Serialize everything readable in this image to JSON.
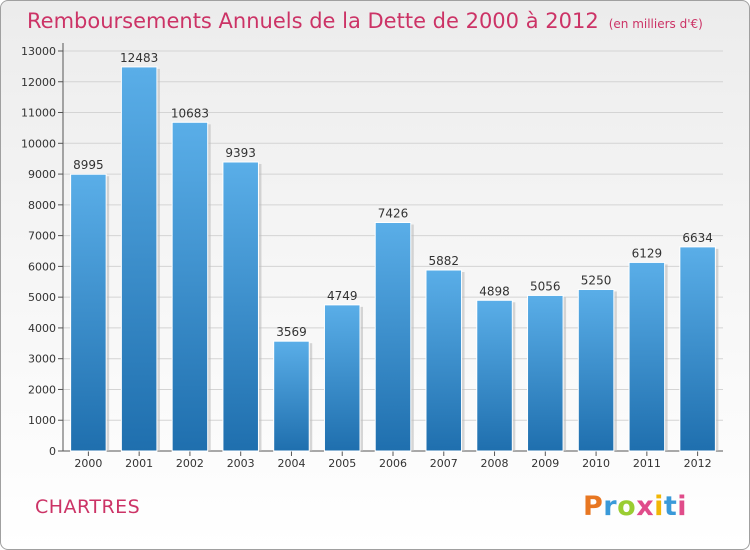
{
  "title": "Remboursements Annuels de la Dette de 2000 à 2012",
  "title_unit": "(en milliers d'€)",
  "commune": "CHARTRES",
  "logo": {
    "text": "Proxiti",
    "colors": [
      "#e87722",
      "#3a9ad9",
      "#9acd32",
      "#e04c8a",
      "#f2b705",
      "#3a9ad9",
      "#e04c8a"
    ]
  },
  "colors": {
    "title": "#cc3366",
    "bar_top": "#5aaee8",
    "bar_bottom": "#1f6fae"
  },
  "chart_data": {
    "type": "bar",
    "title": "Remboursements Annuels de la Dette de 2000 à 2012",
    "categories": [
      "2000",
      "2001",
      "2002",
      "2003",
      "2004",
      "2005",
      "2006",
      "2007",
      "2008",
      "2009",
      "2010",
      "2011",
      "2012"
    ],
    "values": [
      8995,
      12483,
      10683,
      9393,
      3569,
      4749,
      7426,
      5882,
      4898,
      5056,
      5250,
      6129,
      6634
    ],
    "yticks": [
      0,
      1000,
      2000,
      3000,
      4000,
      5000,
      6000,
      7000,
      8000,
      9000,
      10000,
      11000,
      12000,
      13000
    ],
    "ylim": [
      0,
      13000
    ],
    "xlabel": "",
    "ylabel": "",
    "grid": true
  }
}
